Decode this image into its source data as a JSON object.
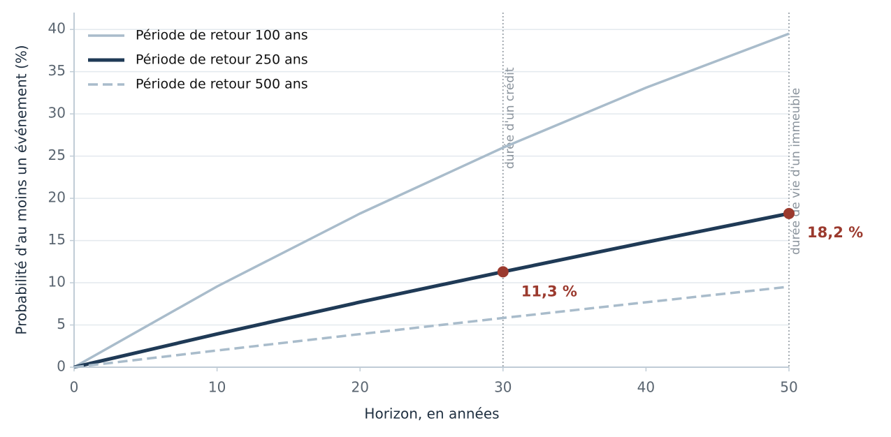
{
  "chart_data": {
    "type": "line",
    "x_label": "Horizon, en années",
    "y_label": "Probabilité d'au moins un événement (%)",
    "x": [
      0,
      10,
      20,
      30,
      40,
      50
    ],
    "series": [
      {
        "name": "Période de retour 100 ans",
        "color": "#a9bccb",
        "style": "solid",
        "width": 3.5,
        "values": [
          0,
          9.56,
          18.2,
          26.0,
          33.1,
          39.5
        ]
      },
      {
        "name": "Période de retour 250 ans",
        "color": "#1f3a56",
        "style": "solid",
        "width": 5,
        "values": [
          0,
          3.93,
          7.71,
          11.3,
          14.8,
          18.2
        ]
      },
      {
        "name": "Période de retour 500 ans",
        "color": "#a9bccb",
        "style": "dashed",
        "width": 3.5,
        "values": [
          0,
          1.98,
          3.92,
          5.83,
          7.69,
          9.53
        ]
      }
    ],
    "xlim": [
      0,
      50
    ],
    "ylim": [
      0,
      42
    ],
    "xticks": [
      0,
      10,
      20,
      30,
      40,
      50
    ],
    "yticks": [
      0,
      5,
      10,
      15,
      20,
      25,
      30,
      35,
      40
    ],
    "grid": "y",
    "legend": "upper left",
    "vlines": [
      {
        "x": 30,
        "label": "durée d'un crédit"
      },
      {
        "x": 50,
        "label": "durée de vie d'un immeuble"
      }
    ],
    "highlight_color": "#9b3a2e",
    "highlights": [
      {
        "x": 30,
        "y": 11.3,
        "label": "11,3 %"
      },
      {
        "x": 50,
        "y": 18.2,
        "label": "18,2 %"
      }
    ]
  }
}
